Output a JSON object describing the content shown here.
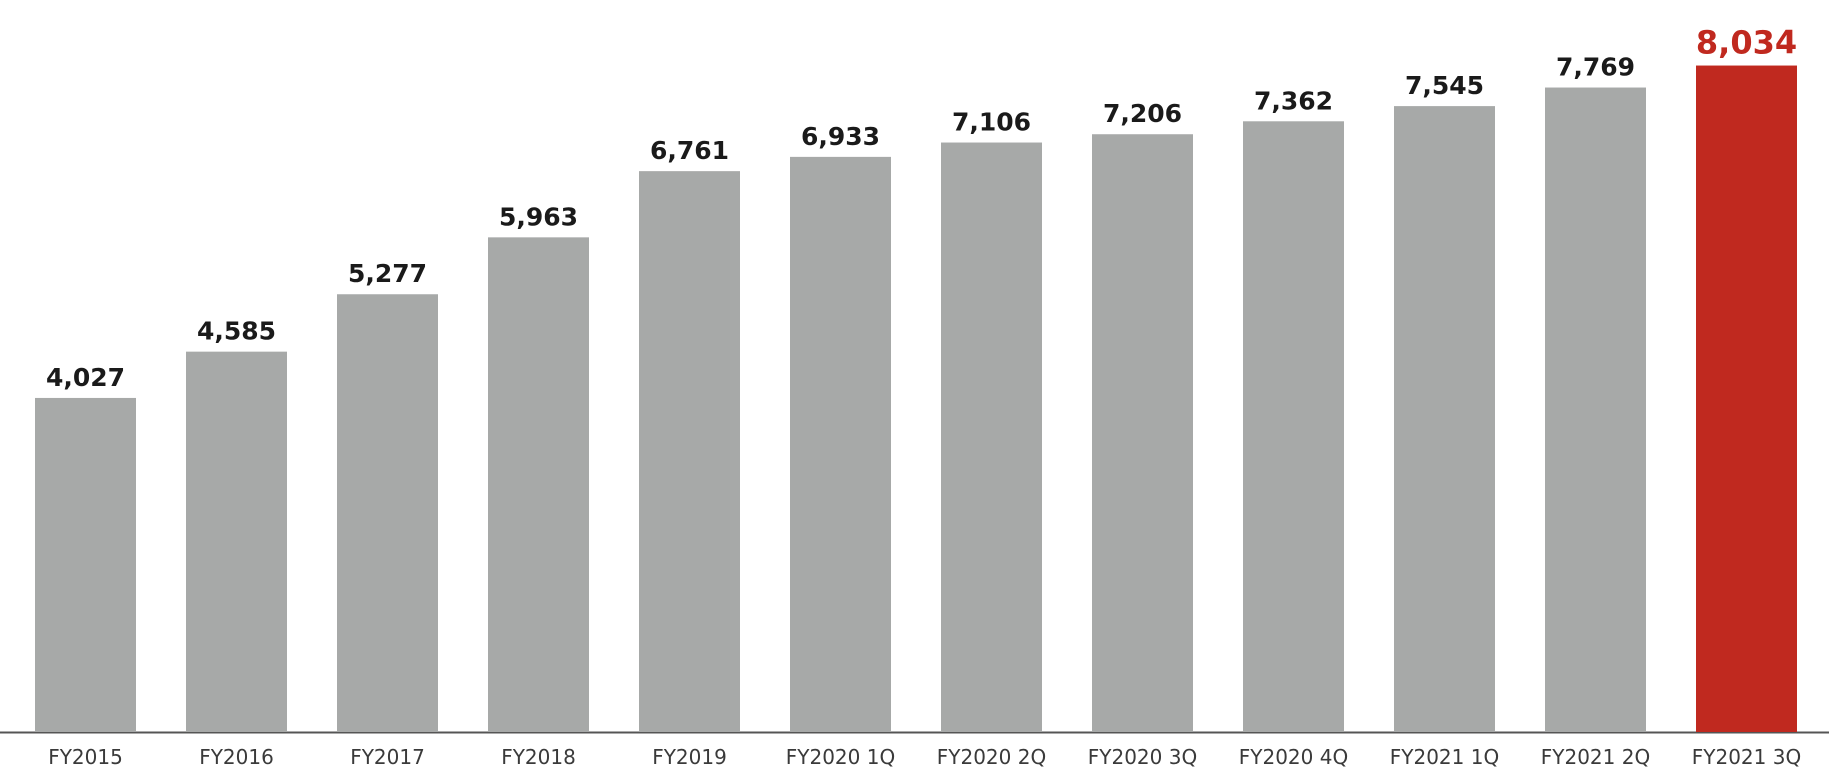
{
  "chart_data": {
    "type": "bar",
    "categories": [
      "FY2015",
      "FY2016",
      "FY2017",
      "FY2018",
      "FY2019",
      "FY2020 1Q",
      "FY2020 2Q",
      "FY2020 3Q",
      "FY2020 4Q",
      "FY2021 1Q",
      "FY2021 2Q",
      "FY2021 3Q"
    ],
    "values": [
      4027,
      4585,
      5277,
      5963,
      6761,
      6933,
      7106,
      7206,
      7362,
      7545,
      7769,
      8034
    ],
    "value_labels": [
      "4,027",
      "4,585",
      "5,277",
      "5,963",
      "6,761",
      "6,933",
      "7,106",
      "7,206",
      "7,362",
      "7,545",
      "7,769",
      "8,034"
    ],
    "colors": [
      "#a7a9a8",
      "#a7a9a8",
      "#a7a9a8",
      "#a7a9a8",
      "#a7a9a8",
      "#a7a9a8",
      "#a7a9a8",
      "#a7a9a8",
      "#a7a9a8",
      "#a7a9a8",
      "#a7a9a8",
      "#c0291f"
    ],
    "ylim": [
      0,
      8800
    ],
    "grid": false
  }
}
